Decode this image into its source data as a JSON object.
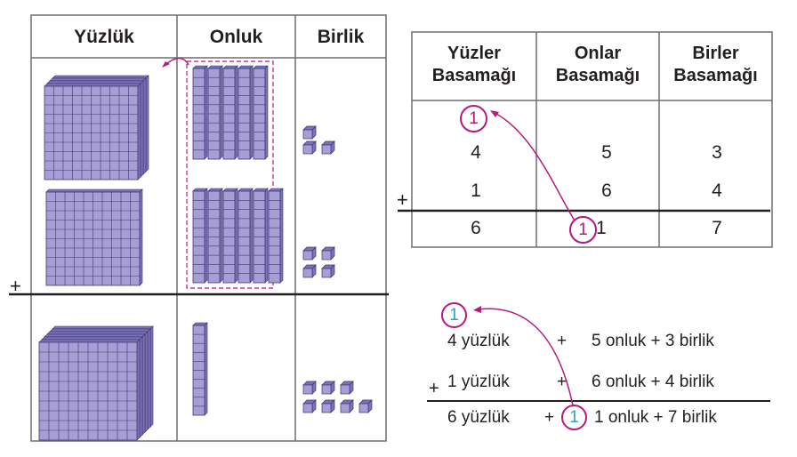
{
  "left_panel": {
    "headers": [
      "Yüzlük",
      "Onluk",
      "Birlik"
    ],
    "plus_sign": "+"
  },
  "place_table": {
    "headers": [
      {
        "line1": "Yüzler",
        "line2": "Basamağı"
      },
      {
        "line1": "Onlar",
        "line2": "Basamağı"
      },
      {
        "line1": "Birler",
        "line2": "Basamağı"
      }
    ],
    "carry": "1",
    "row1": [
      "4",
      "5",
      "3"
    ],
    "row2": [
      "1",
      "6",
      "4"
    ],
    "result": [
      "6",
      "1",
      "7"
    ],
    "result_circled": "1",
    "plus_sign": "+"
  },
  "expanded_sum": {
    "carry": "1",
    "line1": {
      "hundreds": "4  yüzlük",
      "plus": "+",
      "rest": "5 onluk + 3 birlik"
    },
    "line2": {
      "sign": "+",
      "hundreds": "1 yüzlük",
      "plus": "+",
      "rest": "6 onluk + 4 birlik"
    },
    "result": {
      "hundreds": "6 yüzlük",
      "plus": "+",
      "circled": "1",
      "rest": "1 onluk + 7 birlik"
    }
  },
  "colors": {
    "block_fill": "#a89ed6",
    "block_side": "#7d73b8",
    "block_line": "#3d3570",
    "arrow": "#b5197e",
    "carry_circle_text": "#2ba3c7"
  }
}
